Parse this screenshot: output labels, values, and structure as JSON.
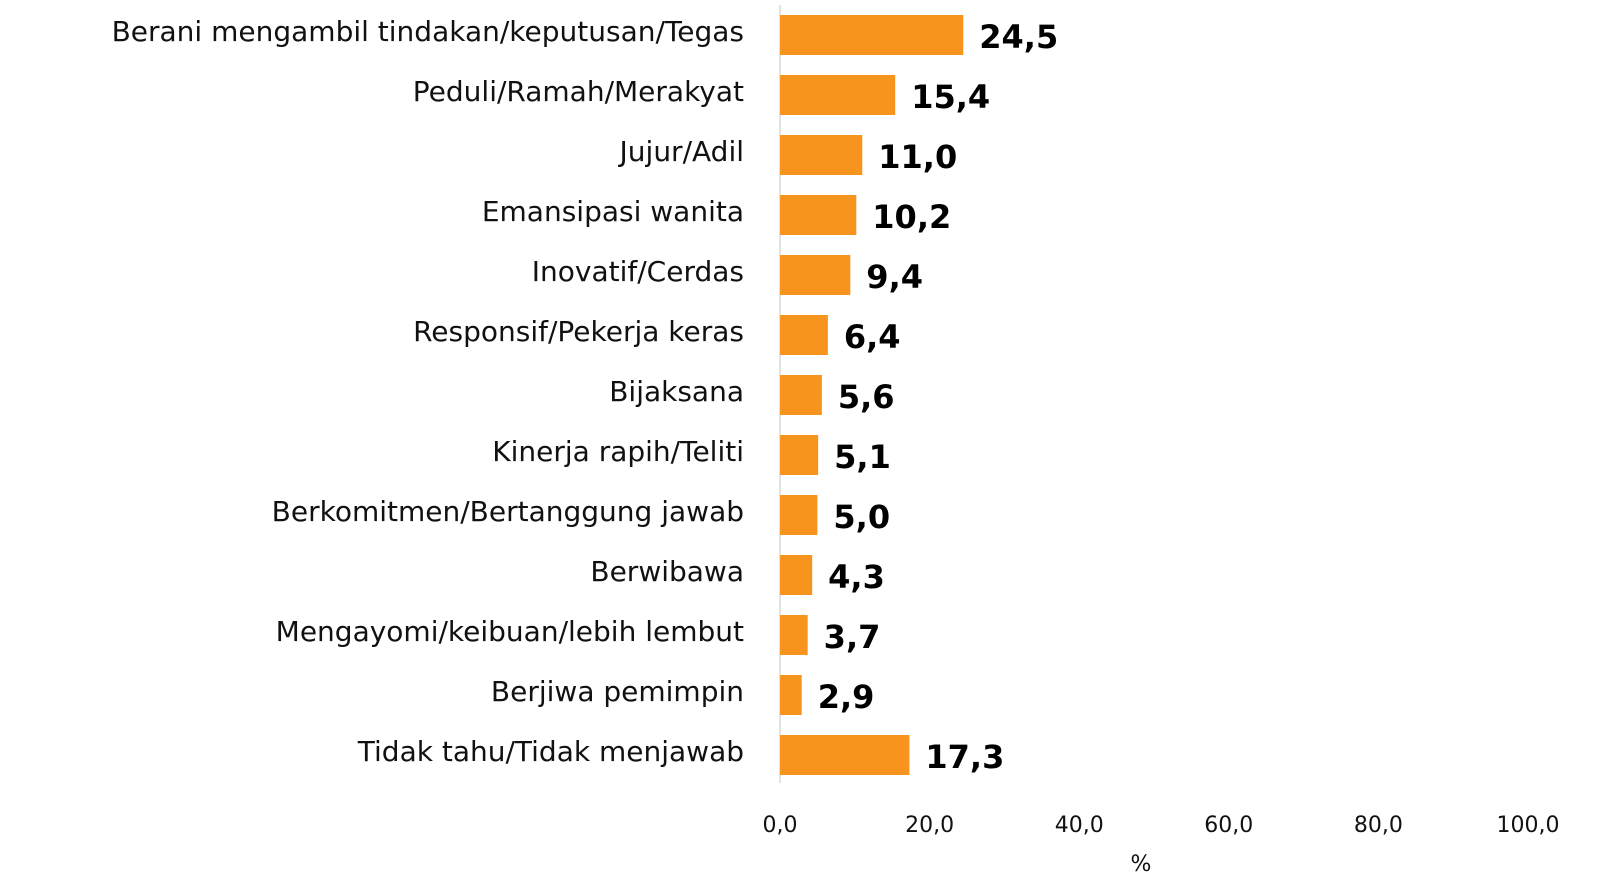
{
  "chart_data": {
    "type": "barh",
    "categories": [
      "Berani mengambil tindakan/keputusan/Tegas",
      "Peduli/Ramah/Merakyat",
      "Jujur/Adil",
      "Emansipasi wanita",
      "Inovatif/Cerdas",
      "Responsif/Pekerja keras",
      "Bijaksana",
      "Kinerja rapih/Teliti",
      "Berkomitmen/Bertanggung jawab",
      "Berwibawa",
      "Mengayomi/keibuan/lebih lembut",
      "Berjiwa pemimpin",
      "Tidak tahu/Tidak menjawab"
    ],
    "values": [
      24.5,
      15.4,
      11.0,
      10.2,
      9.4,
      6.4,
      5.6,
      5.1,
      5.0,
      4.3,
      3.7,
      2.9,
      17.3
    ],
    "value_labels": [
      "24,5",
      "15,4",
      "11,0",
      "10,2",
      "9,4",
      "6,4",
      "5,6",
      "5,1",
      "5,0",
      "4,3",
      "3,7",
      "2,9",
      "17,3"
    ],
    "color": "#f7941d",
    "xlabel": "%",
    "xlim": [
      0,
      100
    ],
    "xticks": [
      {
        "value": 0,
        "label": "0,0"
      },
      {
        "value": 20,
        "label": "20,0"
      },
      {
        "value": 40,
        "label": "40,0"
      },
      {
        "value": 60,
        "label": "60,0"
      },
      {
        "value": 80,
        "label": "80,0"
      },
      {
        "value": 100,
        "label": "100,0"
      }
    ],
    "grid": false
  }
}
